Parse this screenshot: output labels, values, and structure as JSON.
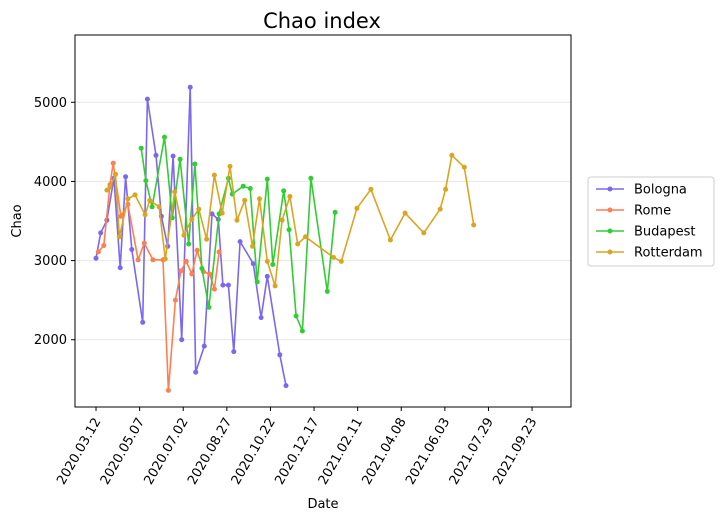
{
  "chart_data": {
    "type": "line",
    "title": "Chao index",
    "xlabel": "Date",
    "ylabel": "Chao",
    "x_axis_type": "date",
    "x_range": [
      "2020-02-14",
      "2021-11-12"
    ],
    "ylim": [
      1150,
      5850
    ],
    "x_ticks": [
      "2020-03-12",
      "2020-05-07",
      "2020-07-02",
      "2020-08-27",
      "2020-10-22",
      "2020-12-17",
      "2021-02-11",
      "2021-04-08",
      "2021-06-03",
      "2021-07-29",
      "2021-09-23"
    ],
    "x_tick_labels": [
      "2020.03.12",
      "2020.05.07",
      "2020.07.02",
      "2020.08.27",
      "2020.10.22",
      "2020.12.17",
      "2021.02.11",
      "2021.04.08",
      "2021.06.03",
      "2021.07.29",
      "2021.09.23"
    ],
    "y_ticks": [
      2000,
      3000,
      4000,
      5000
    ],
    "y_tick_labels": [
      "2000",
      "3000",
      "4000",
      "5000"
    ],
    "grid": "horizontal",
    "legend_position": "right",
    "series": [
      {
        "name": "Bologna",
        "color": "#7b68ee",
        "points": [
          {
            "x": "2020-03-12",
            "y": 3030
          },
          {
            "x": "2020-03-18",
            "y": 3350
          },
          {
            "x": "2020-03-26",
            "y": 3510
          },
          {
            "x": "2020-04-04",
            "y": 4040
          },
          {
            "x": "2020-04-12",
            "y": 2910
          },
          {
            "x": "2020-04-19",
            "y": 4060
          },
          {
            "x": "2020-04-27",
            "y": 3140
          },
          {
            "x": "2020-05-11",
            "y": 2220
          },
          {
            "x": "2020-05-17",
            "y": 5040
          },
          {
            "x": "2020-05-28",
            "y": 4330
          },
          {
            "x": "2020-06-04",
            "y": 3560
          },
          {
            "x": "2020-06-12",
            "y": 3180
          },
          {
            "x": "2020-06-19",
            "y": 4320
          },
          {
            "x": "2020-06-30",
            "y": 2000
          },
          {
            "x": "2020-07-11",
            "y": 5190
          },
          {
            "x": "2020-07-18",
            "y": 1590
          },
          {
            "x": "2020-07-29",
            "y": 1920
          },
          {
            "x": "2020-08-08",
            "y": 3590
          },
          {
            "x": "2020-08-16",
            "y": 3520
          },
          {
            "x": "2020-08-22",
            "y": 2690
          },
          {
            "x": "2020-08-29",
            "y": 2690
          },
          {
            "x": "2020-09-05",
            "y": 1850
          },
          {
            "x": "2020-09-13",
            "y": 3240
          },
          {
            "x": "2020-09-30",
            "y": 2960
          },
          {
            "x": "2020-10-10",
            "y": 2280
          },
          {
            "x": "2020-10-18",
            "y": 2800
          },
          {
            "x": "2020-11-03",
            "y": 1810
          },
          {
            "x": "2020-11-11",
            "y": 1420
          }
        ]
      },
      {
        "name": "Rome",
        "color": "#ff7f50",
        "points": [
          {
            "x": "2020-03-15",
            "y": 3110
          },
          {
            "x": "2020-03-22",
            "y": 3190
          },
          {
            "x": "2020-03-30",
            "y": 3960
          },
          {
            "x": "2020-04-03",
            "y": 4230
          },
          {
            "x": "2020-04-13",
            "y": 3560
          },
          {
            "x": "2020-04-22",
            "y": 3710
          },
          {
            "x": "2020-05-05",
            "y": 3010
          },
          {
            "x": "2020-05-13",
            "y": 3220
          },
          {
            "x": "2020-05-24",
            "y": 3010
          },
          {
            "x": "2020-06-06",
            "y": 3010
          },
          {
            "x": "2020-06-13",
            "y": 1360
          },
          {
            "x": "2020-06-22",
            "y": 2500
          },
          {
            "x": "2020-06-29",
            "y": 2870
          },
          {
            "x": "2020-07-06",
            "y": 2990
          },
          {
            "x": "2020-07-13",
            "y": 2830
          },
          {
            "x": "2020-07-20",
            "y": 3130
          },
          {
            "x": "2020-07-28",
            "y": 2860
          },
          {
            "x": "2020-08-05",
            "y": 2830
          },
          {
            "x": "2020-08-11",
            "y": 2640
          },
          {
            "x": "2020-08-17",
            "y": 3110
          }
        ]
      },
      {
        "name": "Budapest",
        "color": "#32cd32",
        "points": [
          {
            "x": "2020-05-09",
            "y": 4420
          },
          {
            "x": "2020-05-15",
            "y": 4010
          },
          {
            "x": "2020-05-23",
            "y": 3680
          },
          {
            "x": "2020-06-08",
            "y": 4560
          },
          {
            "x": "2020-06-18",
            "y": 3540
          },
          {
            "x": "2020-06-28",
            "y": 4280
          },
          {
            "x": "2020-07-09",
            "y": 3210
          },
          {
            "x": "2020-07-17",
            "y": 4220
          },
          {
            "x": "2020-07-26",
            "y": 2900
          },
          {
            "x": "2020-08-04",
            "y": 2410
          },
          {
            "x": "2020-08-17",
            "y": 3590
          },
          {
            "x": "2020-08-29",
            "y": 4040
          },
          {
            "x": "2020-09-03",
            "y": 3840
          },
          {
            "x": "2020-09-17",
            "y": 3940
          },
          {
            "x": "2020-09-26",
            "y": 3910
          },
          {
            "x": "2020-10-05",
            "y": 2730
          },
          {
            "x": "2020-10-18",
            "y": 4030
          },
          {
            "x": "2020-10-25",
            "y": 2950
          },
          {
            "x": "2020-11-08",
            "y": 3880
          },
          {
            "x": "2020-11-15",
            "y": 3390
          },
          {
            "x": "2020-11-24",
            "y": 2300
          },
          {
            "x": "2020-12-02",
            "y": 2110
          },
          {
            "x": "2020-12-13",
            "y": 4040
          },
          {
            "x": "2021-01-03",
            "y": 2610
          },
          {
            "x": "2021-01-13",
            "y": 3610
          }
        ]
      },
      {
        "name": "Rotterdam",
        "color": "#daa520",
        "points": [
          {
            "x": "2020-03-26",
            "y": 3890
          },
          {
            "x": "2020-03-30",
            "y": 3930
          },
          {
            "x": "2020-04-06",
            "y": 4090
          },
          {
            "x": "2020-04-11",
            "y": 3300
          },
          {
            "x": "2020-04-22",
            "y": 3780
          },
          {
            "x": "2020-05-01",
            "y": 3830
          },
          {
            "x": "2020-05-14",
            "y": 3580
          },
          {
            "x": "2020-05-20",
            "y": 3760
          },
          {
            "x": "2020-06-01",
            "y": 3680
          },
          {
            "x": "2020-06-09",
            "y": 3020
          },
          {
            "x": "2020-06-21",
            "y": 3870
          },
          {
            "x": "2020-07-03",
            "y": 3320
          },
          {
            "x": "2020-07-13",
            "y": 3520
          },
          {
            "x": "2020-07-22",
            "y": 3650
          },
          {
            "x": "2020-08-01",
            "y": 3270
          },
          {
            "x": "2020-08-11",
            "y": 4080
          },
          {
            "x": "2020-08-21",
            "y": 3600
          },
          {
            "x": "2020-08-31",
            "y": 4190
          },
          {
            "x": "2020-09-09",
            "y": 3510
          },
          {
            "x": "2020-09-19",
            "y": 3760
          },
          {
            "x": "2020-09-29",
            "y": 3180
          },
          {
            "x": "2020-10-08",
            "y": 3780
          },
          {
            "x": "2020-10-18",
            "y": 2990
          },
          {
            "x": "2020-10-28",
            "y": 2680
          },
          {
            "x": "2020-11-06",
            "y": 3510
          },
          {
            "x": "2020-11-16",
            "y": 3810
          },
          {
            "x": "2020-11-26",
            "y": 3210
          },
          {
            "x": "2020-12-06",
            "y": 3300
          },
          {
            "x": "2021-01-11",
            "y": 3040
          },
          {
            "x": "2021-01-21",
            "y": 2990
          },
          {
            "x": "2021-02-10",
            "y": 3660
          },
          {
            "x": "2021-02-28",
            "y": 3900
          },
          {
            "x": "2021-03-25",
            "y": 3260
          },
          {
            "x": "2021-04-13",
            "y": 3600
          },
          {
            "x": "2021-05-07",
            "y": 3350
          },
          {
            "x": "2021-05-28",
            "y": 3650
          },
          {
            "x": "2021-06-04",
            "y": 3900
          },
          {
            "x": "2021-06-12",
            "y": 4330
          },
          {
            "x": "2021-06-28",
            "y": 4180
          },
          {
            "x": "2021-07-10",
            "y": 3450
          }
        ]
      }
    ]
  }
}
